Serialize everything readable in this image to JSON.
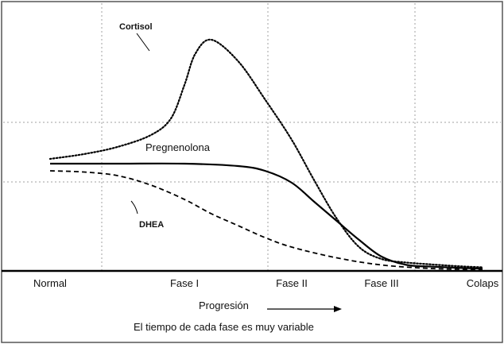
{
  "chart_data": {
    "type": "line",
    "categories": [
      "Normal",
      "Fase I",
      "Fase II",
      "Fase III",
      "Colapso"
    ],
    "category_labels": [
      "Normal",
      "Fase I",
      "Fase II",
      "Fase III",
      "Colaps"
    ],
    "xlabel": "Progresión",
    "note": "El tiempo de cada fase es muy variable",
    "ylim": [
      0,
      100
    ],
    "grid": true,
    "series": [
      {
        "name": "Cortisol",
        "style": "dotted",
        "x": [
          0,
          0.25,
          0.5,
          0.75,
          0.9,
          1.0,
          1.1,
          1.25,
          1.5,
          1.75,
          2.0,
          2.25,
          2.5,
          2.75,
          3.0,
          3.25,
          3.5,
          3.75,
          4.0
        ],
        "values": [
          47,
          49,
          52,
          57,
          64,
          78,
          91,
          97,
          88,
          72,
          55,
          38,
          22,
          10,
          5,
          3.5,
          2.7,
          2,
          1.5
        ]
      },
      {
        "name": "Pregnenolona",
        "style": "solid",
        "x": [
          0,
          0.5,
          1.0,
          1.5,
          1.75,
          2.0,
          2.25,
          2.5,
          2.75,
          3.0,
          3.25,
          3.5,
          3.75,
          4.0
        ],
        "values": [
          45,
          45,
          45,
          44,
          42,
          37,
          29,
          21,
          13,
          6,
          2.5,
          1.8,
          1.3,
          1
        ]
      },
      {
        "name": "DHEA",
        "style": "dashed",
        "x": [
          0,
          0.25,
          0.5,
          0.75,
          1.0,
          1.25,
          1.5,
          1.75,
          2.0,
          2.5,
          3.0,
          3.5,
          4.0
        ],
        "values": [
          42,
          41.5,
          40,
          36,
          30,
          24,
          19,
          14,
          10,
          5.5,
          2.5,
          1,
          0.5
        ]
      }
    ],
    "colors": {
      "line": "#000000",
      "grid": "#a0a0a0",
      "background": "#ffffff"
    }
  }
}
